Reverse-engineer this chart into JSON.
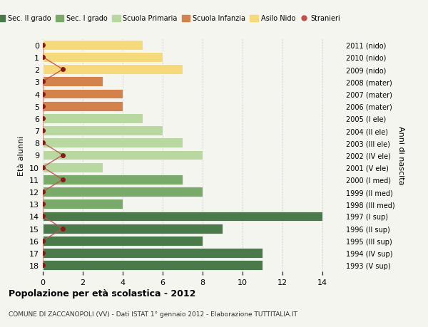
{
  "ages": [
    18,
    17,
    16,
    15,
    14,
    13,
    12,
    11,
    10,
    9,
    8,
    7,
    6,
    5,
    4,
    3,
    2,
    1,
    0
  ],
  "right_labels": [
    "1993 (V sup)",
    "1994 (IV sup)",
    "1995 (III sup)",
    "1996 (II sup)",
    "1997 (I sup)",
    "1998 (III med)",
    "1999 (II med)",
    "2000 (I med)",
    "2001 (V ele)",
    "2002 (IV ele)",
    "2003 (III ele)",
    "2004 (II ele)",
    "2005 (I ele)",
    "2006 (mater)",
    "2007 (mater)",
    "2008 (mater)",
    "2009 (nido)",
    "2010 (nido)",
    "2011 (nido)"
  ],
  "bar_values": [
    11,
    11,
    8,
    9,
    14,
    4,
    8,
    7,
    3,
    8,
    7,
    6,
    5,
    4,
    4,
    3,
    7,
    6,
    5
  ],
  "bar_colors": [
    "#4a7a4a",
    "#4a7a4a",
    "#4a7a4a",
    "#4a7a4a",
    "#4a7a4a",
    "#7aaa6a",
    "#7aaa6a",
    "#7aaa6a",
    "#b8d8a0",
    "#b8d8a0",
    "#b8d8a0",
    "#b8d8a0",
    "#b8d8a0",
    "#d2824a",
    "#d2824a",
    "#d2824a",
    "#f5d97a",
    "#f5d97a",
    "#f5d97a"
  ],
  "stranieri_values": [
    0,
    0,
    0,
    1,
    0,
    0,
    0,
    1,
    0,
    1,
    0,
    0,
    0,
    0,
    0,
    0,
    1,
    0,
    0
  ],
  "stranieri_color": "#8b1a1a",
  "stranieri_line_color": "#c0504d",
  "title": "Popolazione per età scolastica - 2012",
  "subtitle": "COMUNE DI ZACCANOPOLI (VV) - Dati ISTAT 1° gennaio 2012 - Elaborazione TUTTITALIA.IT",
  "ylabel": "Età alunni",
  "right_ylabel": "Anni di nascita",
  "xlim": [
    0,
    15
  ],
  "legend_items": [
    {
      "label": "Sec. II grado",
      "color": "#4a7a4a"
    },
    {
      "label": "Sec. I grado",
      "color": "#7aaa6a"
    },
    {
      "label": "Scuola Primaria",
      "color": "#b8d8a0"
    },
    {
      "label": "Scuola Infanzia",
      "color": "#d2824a"
    },
    {
      "label": "Asilo Nido",
      "color": "#f5d97a"
    },
    {
      "label": "Stranieri",
      "color": "#c0504d"
    }
  ],
  "bg_color": "#f5f5f0",
  "bar_edge_color": "white",
  "bar_height": 0.8
}
